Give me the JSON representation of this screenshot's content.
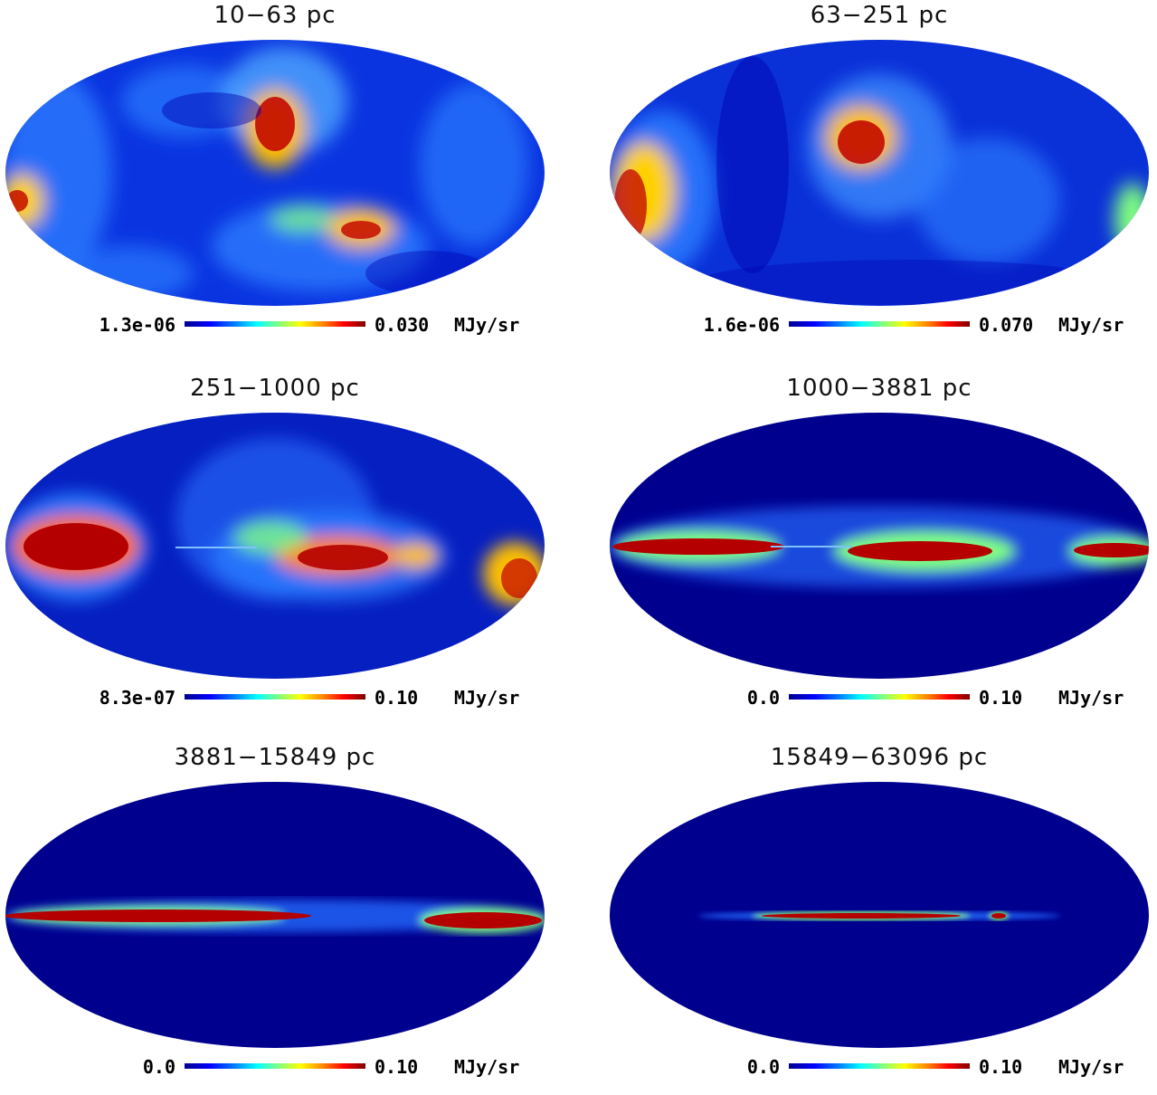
{
  "figure": {
    "colorbar_gradient": [
      "#00008f",
      "#0000ff",
      "#0080ff",
      "#00ffff",
      "#80ff80",
      "#ffff00",
      "#ff8000",
      "#ff0000",
      "#800000"
    ],
    "panels": [
      {
        "title": "10−63  pc",
        "min": "1.3e-06",
        "max": "0.030",
        "unit": "MJy/sr"
      },
      {
        "title": "63−251  pc",
        "min": "1.6e-06",
        "max": "0.070",
        "unit": "MJy/sr"
      },
      {
        "title": "251−1000  pc",
        "min": "8.3e-07",
        "max": "0.10",
        "unit": "MJy/sr"
      },
      {
        "title": "1000−3881  pc",
        "min": "0.0",
        "max": "0.10",
        "unit": "MJy/sr"
      },
      {
        "title": "3881−15849  pc",
        "min": "0.0",
        "max": "0.10",
        "unit": "MJy/sr"
      },
      {
        "title": "15849−63096  pc",
        "min": "0.0",
        "max": "0.10",
        "unit": "MJy/sr"
      }
    ]
  }
}
